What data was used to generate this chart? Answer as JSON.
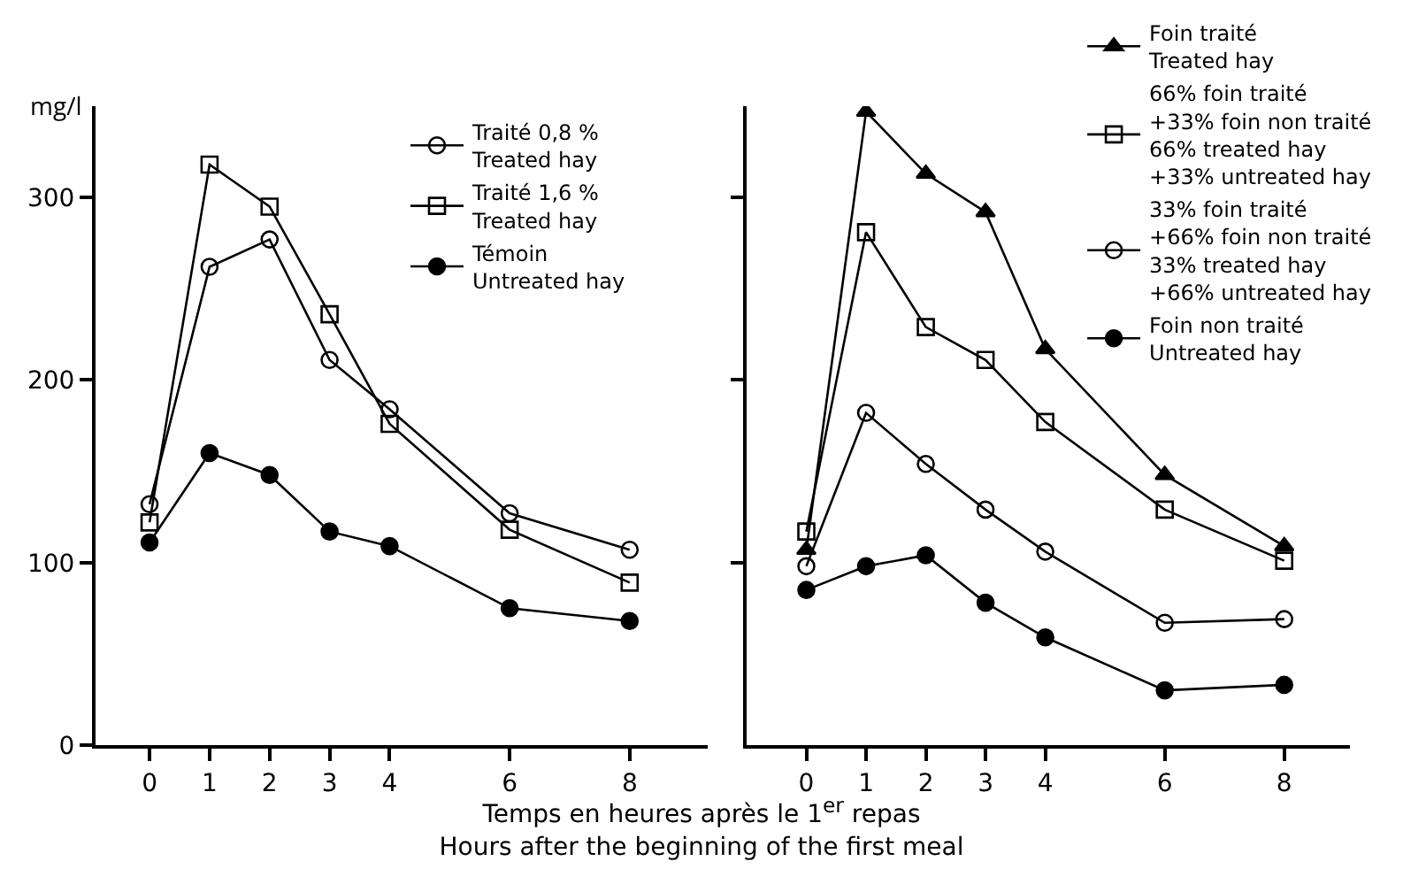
{
  "chart_data": [
    {
      "type": "line",
      "ylabel": "mg/l",
      "xlabel": "Temps en heures après le 1$^{er}$ repas\nHours after the beginning of the first meal",
      "x": [
        0,
        1,
        2,
        3,
        4,
        6,
        8
      ],
      "xlim": [
        -0.9,
        9.3
      ],
      "xticks": [
        0,
        1,
        2,
        3,
        4,
        6,
        8
      ],
      "ylim": [
        0,
        350
      ],
      "yticks": [
        0,
        100,
        200,
        300
      ],
      "grid": false,
      "legend": "top right",
      "line_style": "solid",
      "series": [
        {
          "name": "Traité 0,8 %\nTreated hay",
          "color": "#000000",
          "marker": "circle-open",
          "values": [
            132,
            262,
            277,
            211,
            184,
            127,
            107
          ]
        },
        {
          "name": "Traité 1,6 %\nTreated hay",
          "color": "#000000",
          "marker": "square-open",
          "values": [
            122,
            318,
            295,
            236,
            176,
            118,
            89
          ]
        },
        {
          "name": "Témoin\nUntreated hay",
          "color": "#000000",
          "marker": "circle",
          "values": [
            111,
            160,
            148,
            117,
            109,
            75,
            68
          ]
        }
      ]
    },
    {
      "type": "line",
      "x": [
        0,
        1,
        2,
        3,
        4,
        6,
        8
      ],
      "xlim": [
        -1,
        9.1
      ],
      "xticks": [
        0,
        1,
        2,
        3,
        4,
        6,
        8
      ],
      "ylim": [
        0,
        350
      ],
      "yticks": [
        100,
        200,
        300
      ],
      "tick_labels": "x",
      "grid": false,
      "legend": "top right",
      "line_style": "solid",
      "series": [
        {
          "name": "Foin traité\nTreated hay",
          "color": "#000000",
          "marker": "triangle",
          "values": [
            107,
            347,
            313,
            292,
            217,
            148,
            109
          ]
        },
        {
          "name": "66% foin traité\n+33% foin non traité\n66% treated hay\n+33% untreated hay",
          "color": "#000000",
          "marker": "square-open",
          "values": [
            117,
            281,
            229,
            211,
            177,
            129,
            101
          ]
        },
        {
          "name": "33% foin traité\n+66% foin non traité\n33% treated hay\n+66% untreated hay",
          "color": "#000000",
          "marker": "circle-open",
          "values": [
            98,
            182,
            154,
            129,
            106,
            67,
            69
          ]
        },
        {
          "name": "Foin non traité\nUntreated hay",
          "color": "#000000",
          "marker": "circle",
          "values": [
            85,
            98,
            104,
            78,
            59,
            30,
            33
          ]
        }
      ]
    }
  ]
}
